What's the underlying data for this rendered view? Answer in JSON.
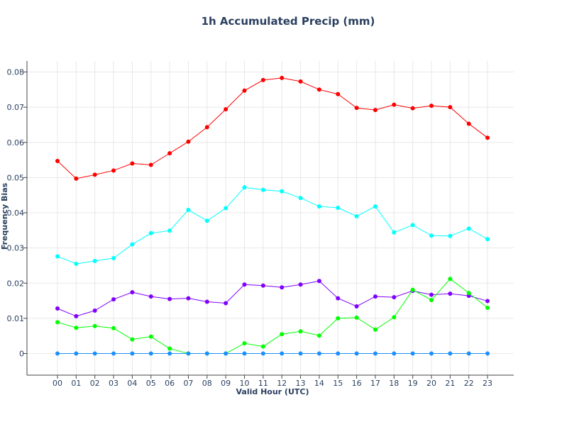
{
  "chart_data": {
    "type": "line",
    "title": "1h Accumulated Precip (mm)",
    "xlabel": "Valid Hour (UTC)",
    "ylabel": "Frequency Bias",
    "categories": [
      "00",
      "01",
      "02",
      "03",
      "04",
      "05",
      "06",
      "07",
      "08",
      "09",
      "10",
      "11",
      "12",
      "13",
      "14",
      "15",
      "16",
      "17",
      "18",
      "19",
      "20",
      "21",
      "22",
      "23"
    ],
    "yticks": [
      0,
      0.01,
      0.02,
      0.03,
      0.04,
      0.05,
      0.06,
      0.07,
      0.08
    ],
    "ytick_labels": [
      "0",
      "0.01",
      "0.02",
      "0.03",
      "0.04",
      "0.05",
      "0.06",
      "0.07",
      "0.08"
    ],
    "ylim": [
      -0.006,
      0.083
    ],
    "grid": true,
    "series": [
      {
        "color": "#ff0000",
        "values": [
          0.0547,
          0.0497,
          0.0508,
          0.052,
          0.054,
          0.0536,
          0.0569,
          0.0602,
          0.0643,
          0.0694,
          0.0747,
          0.0777,
          0.0783,
          0.0773,
          0.075,
          0.0737,
          0.0698,
          0.0692,
          0.0707,
          0.0697,
          0.0704,
          0.07,
          0.0653,
          0.0613
        ]
      },
      {
        "color": "#00ffff",
        "values": [
          0.0276,
          0.0255,
          0.0263,
          0.0271,
          0.031,
          0.0342,
          0.0349,
          0.0408,
          0.0377,
          0.0413,
          0.0472,
          0.0465,
          0.0461,
          0.0442,
          0.0418,
          0.0414,
          0.039,
          0.0418,
          0.0344,
          0.0365,
          0.0335,
          0.0334,
          0.0355,
          0.0325
        ]
      },
      {
        "color": "#8000ff",
        "values": [
          0.0128,
          0.0106,
          0.0122,
          0.0154,
          0.0174,
          0.0162,
          0.0155,
          0.0157,
          0.0147,
          0.0143,
          0.0196,
          0.0193,
          0.0188,
          0.0196,
          0.0206,
          0.0157,
          0.0134,
          0.0162,
          0.016,
          0.0178,
          0.0167,
          0.017,
          0.0164,
          0.0149
        ]
      },
      {
        "color": "#00ff00",
        "values": [
          0.0089,
          0.0073,
          0.0078,
          0.0072,
          0.004,
          0.0048,
          0.0014,
          0.0,
          0.0,
          0.0,
          0.0029,
          0.002,
          0.0055,
          0.0063,
          0.0051,
          0.01,
          0.0102,
          0.0068,
          0.0103,
          0.0181,
          0.0152,
          0.0212,
          0.0172,
          0.013
        ]
      },
      {
        "color": "#1e90ff",
        "values": [
          0,
          0,
          0,
          0,
          0,
          0,
          0,
          0,
          0,
          0,
          0,
          0,
          0,
          0,
          0,
          0,
          0,
          0,
          0,
          0,
          0,
          0,
          0,
          0
        ]
      }
    ]
  }
}
